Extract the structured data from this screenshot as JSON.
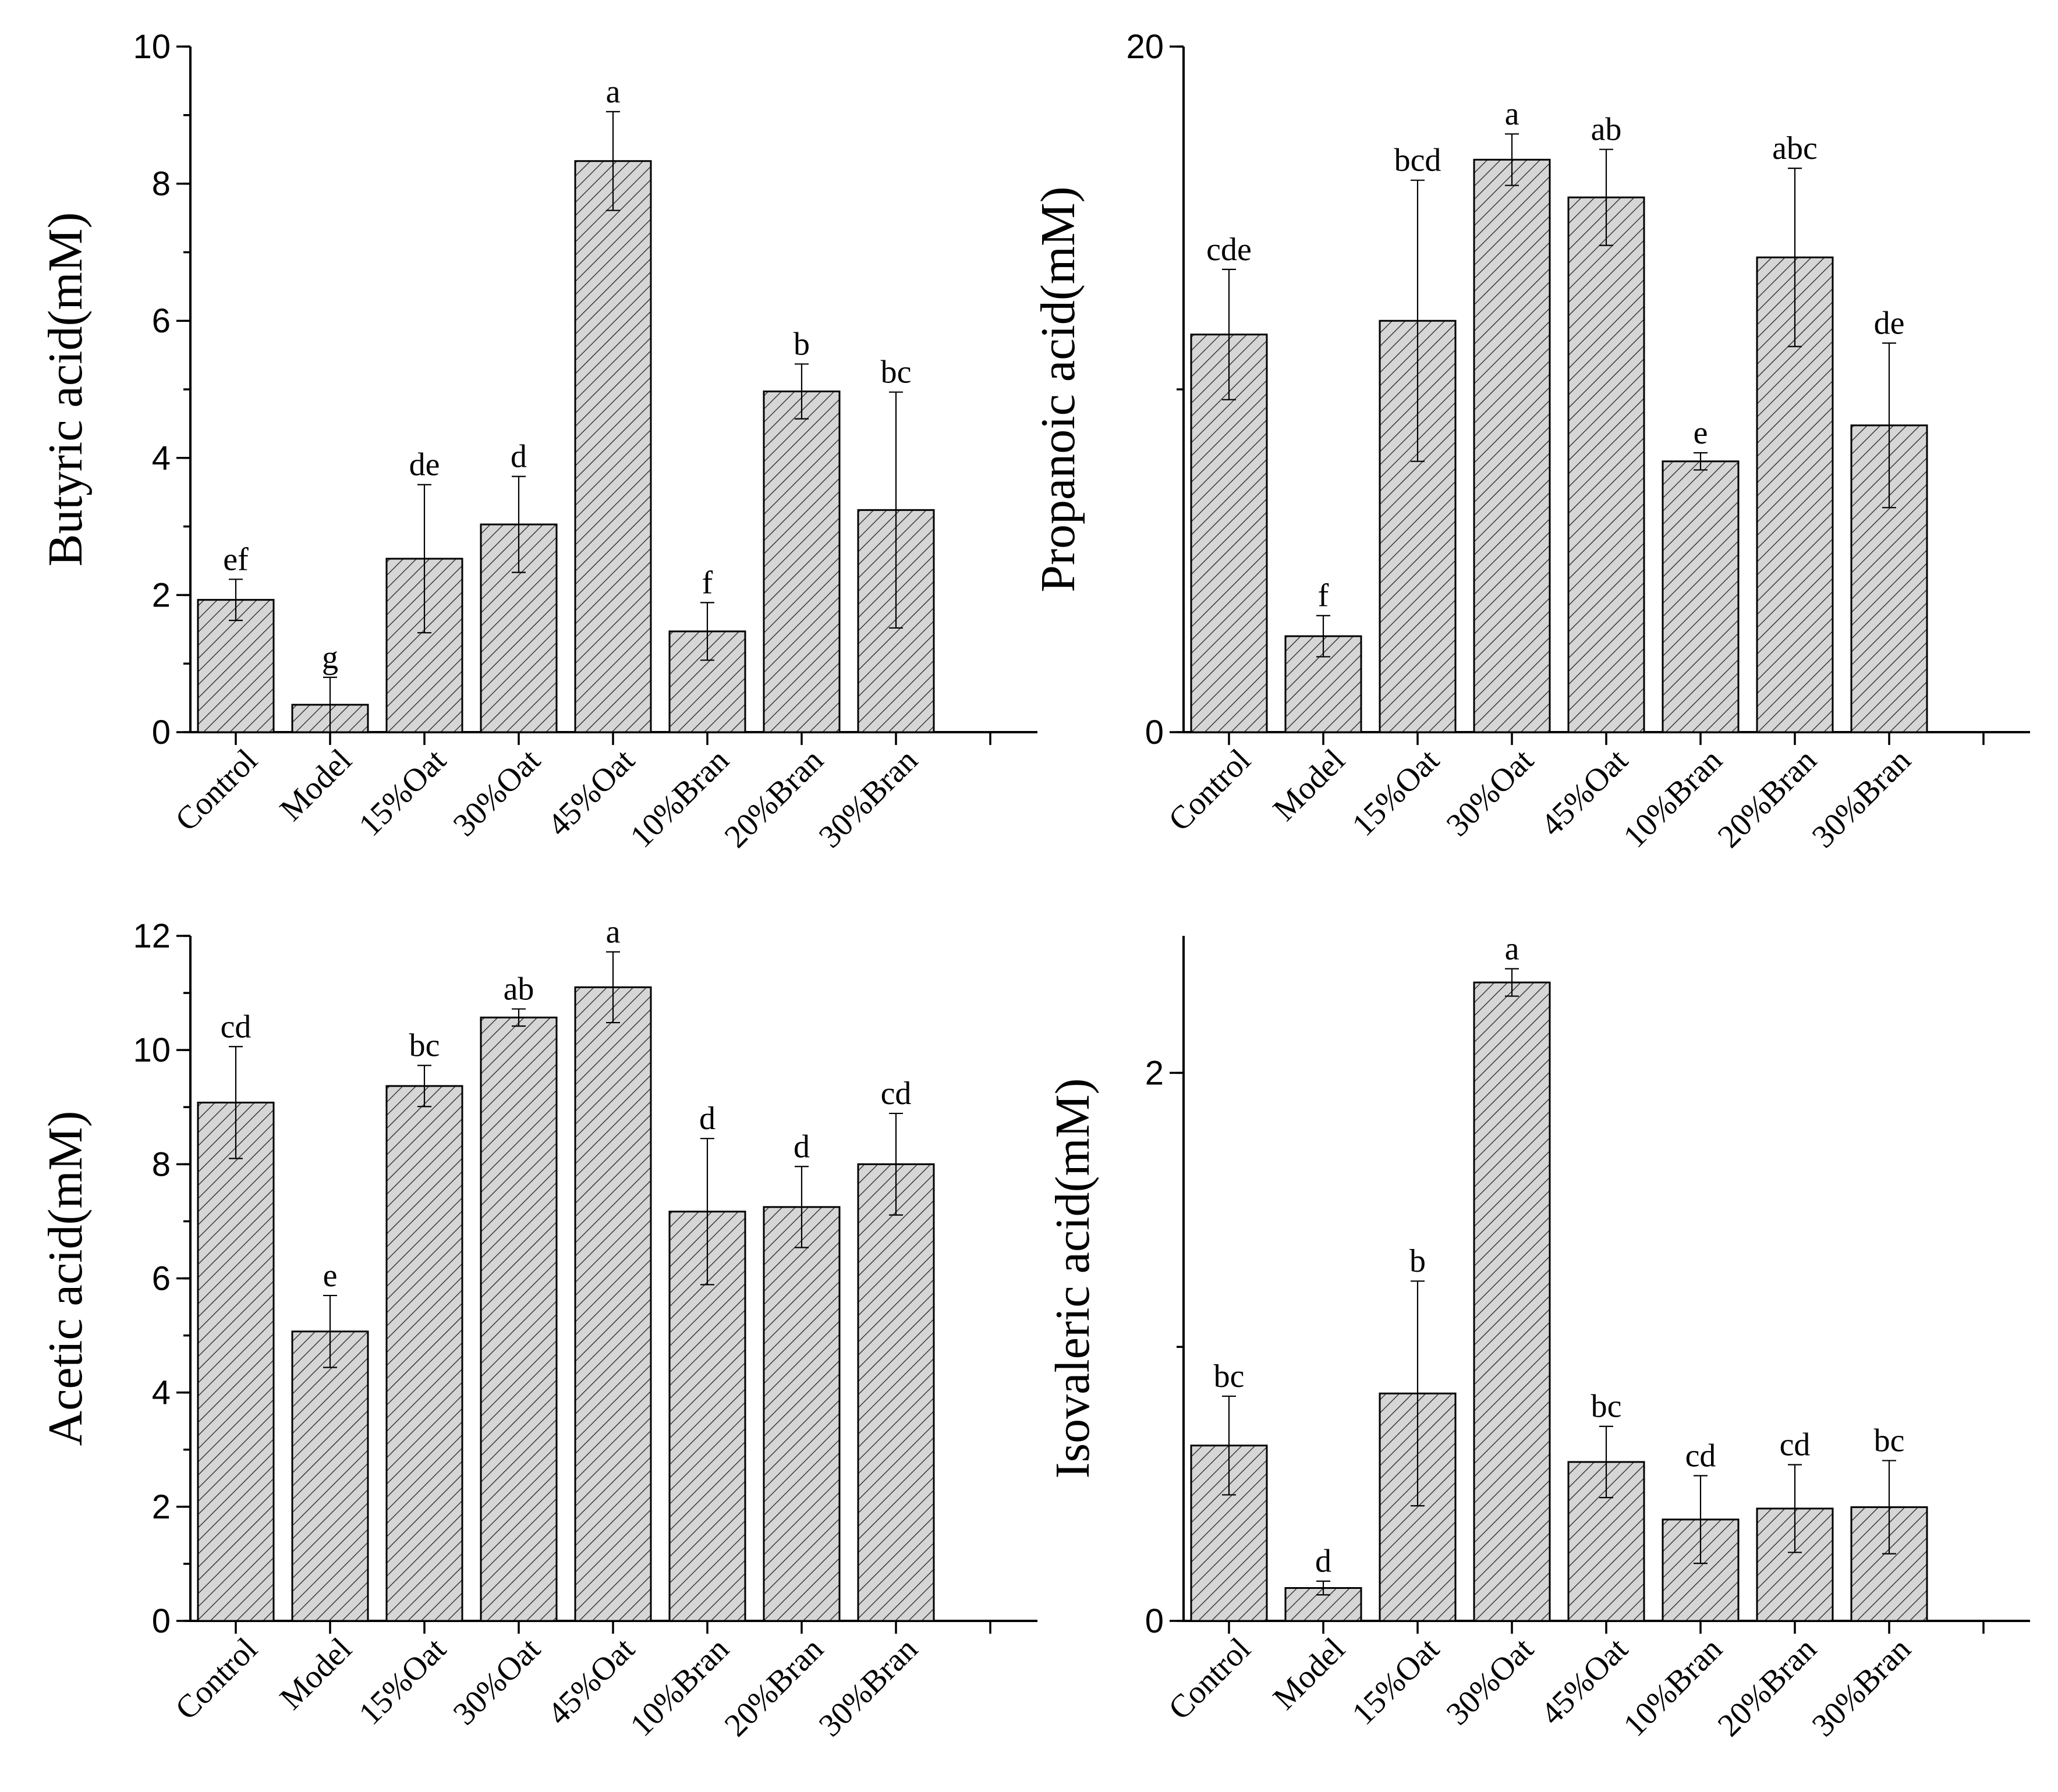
{
  "chart_data": [
    {
      "type": "bar",
      "panel": "top-left",
      "ylabel": "Butyric acid(mM)",
      "ylim": [
        0,
        10
      ],
      "major_ticks": [
        0,
        2,
        4,
        6,
        8,
        10
      ],
      "minor_step": 1,
      "categories": [
        "Control",
        "Model",
        "15%Oat",
        "30%Oat",
        "45%Oat",
        "10%Bran",
        "20%Bran",
        "30%Bran"
      ],
      "values": [
        1.93,
        0.4,
        2.53,
        3.03,
        8.33,
        1.47,
        4.97,
        3.24
      ],
      "errors": [
        0.3,
        0.4,
        1.08,
        0.7,
        0.72,
        0.42,
        0.4,
        1.72
      ],
      "significance": [
        "ef",
        "g",
        "de",
        "d",
        "a",
        "f",
        "b",
        "bc"
      ]
    },
    {
      "type": "bar",
      "panel": "top-right",
      "ylabel": "Propanoic acid(mM)",
      "ylim": [
        0,
        20
      ],
      "major_ticks": [
        0,
        20
      ],
      "minor_step": 10,
      "categories": [
        "Control",
        "Model",
        "15%Oat",
        "30%Oat",
        "45%Oat",
        "10%Bran",
        "20%Bran",
        "30%Bran"
      ],
      "values": [
        11.6,
        2.8,
        12.0,
        16.7,
        15.6,
        7.9,
        13.85,
        8.95
      ],
      "errors": [
        1.9,
        0.6,
        4.1,
        0.75,
        1.4,
        0.25,
        2.6,
        2.4
      ],
      "significance": [
        "cde",
        "f",
        "bcd",
        "a",
        "ab",
        "e",
        "abc",
        "de"
      ]
    },
    {
      "type": "bar",
      "panel": "bottom-left",
      "ylabel": "Acetic acid(mM)",
      "ylim": [
        0,
        12
      ],
      "major_ticks": [
        0,
        2,
        4,
        6,
        8,
        10,
        12
      ],
      "minor_step": 1,
      "categories": [
        "Control",
        "Model",
        "15%Oat",
        "30%Oat",
        "45%Oat",
        "10%Bran",
        "20%Bran",
        "30%Bran"
      ],
      "values": [
        9.08,
        5.07,
        9.37,
        10.57,
        11.1,
        7.17,
        7.25,
        8.0
      ],
      "errors": [
        0.98,
        0.63,
        0.36,
        0.15,
        0.62,
        1.28,
        0.71,
        0.89
      ],
      "significance": [
        "cd",
        "e",
        "bc",
        "ab",
        "a",
        "d",
        "d",
        "cd"
      ]
    },
    {
      "type": "bar",
      "panel": "bottom-right",
      "ylabel": "Isovaleric acid(mM)",
      "ylim": [
        0,
        2.5
      ],
      "major_ticks": [
        0,
        2
      ],
      "minor_step": 1,
      "categories": [
        "Control",
        "Model",
        "15%Oat",
        "30%Oat",
        "45%Oat",
        "10%Bran",
        "20%Bran",
        "30%Bran"
      ],
      "values": [
        0.64,
        0.12,
        0.83,
        2.33,
        0.58,
        0.37,
        0.41,
        0.415
      ],
      "errors": [
        0.18,
        0.025,
        0.41,
        0.05,
        0.13,
        0.16,
        0.16,
        0.17
      ],
      "significance": [
        "bc",
        "d",
        "b",
        "a",
        "bc",
        "cd",
        "cd",
        "bc"
      ]
    }
  ]
}
